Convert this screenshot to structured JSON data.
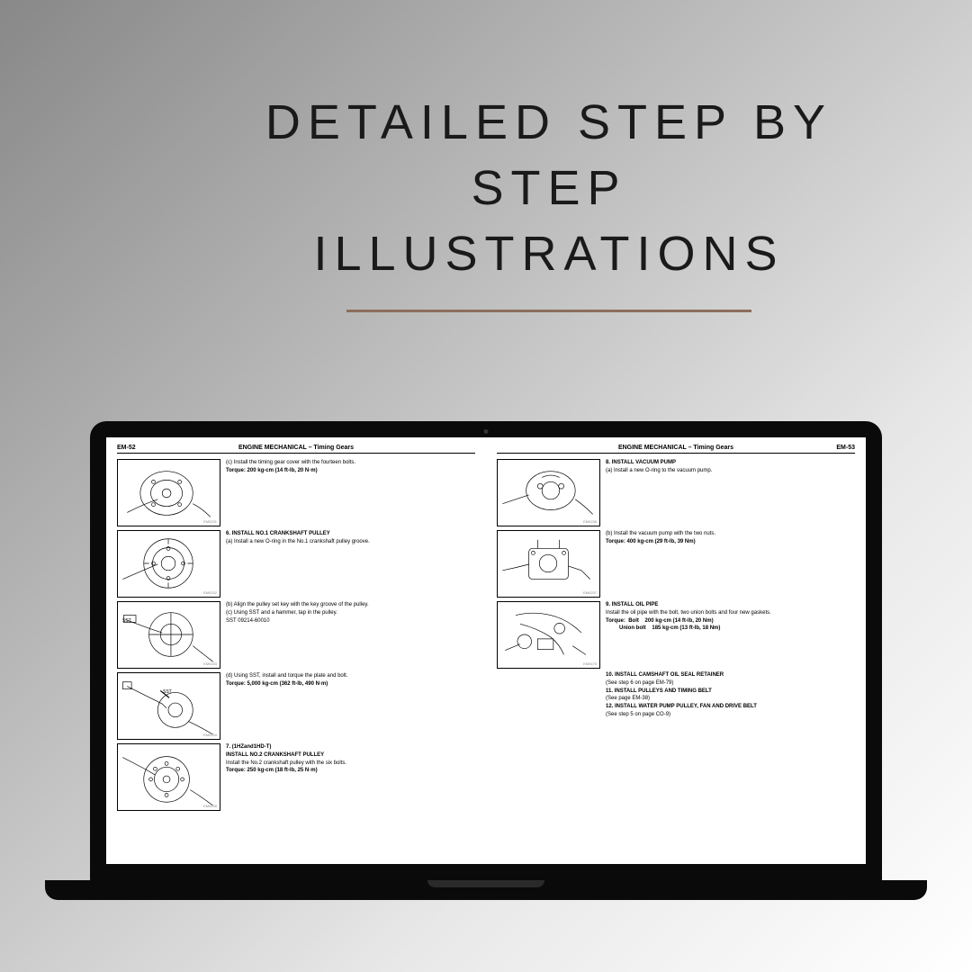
{
  "headline": {
    "line1": "DETAILED STEP BY STEP",
    "line2": "ILLUSTRATIONS"
  },
  "leftPage": {
    "pageNum": "EM-52",
    "sectionTitle": "ENGINE MECHANICAL – Timing Gears",
    "steps": [
      {
        "diagram": true,
        "diagramId": "EM0231",
        "lines": [
          "(c)  Install the timing gear cover with the fourteen bolts."
        ],
        "torque": "Torque:   200 kg-cm (14 ft-lb, 20 N·m)"
      },
      {
        "diagram": true,
        "diagramId": "EM0232",
        "num": "6.",
        "title": "INSTALL NO.1 CRANKSHAFT PULLEY",
        "lines": [
          "(a)  Install a new O-ring in the No.1 crankshaft pulley groove."
        ]
      },
      {
        "diagram": true,
        "diagramId": "EM0233",
        "sst": true,
        "lines": [
          "(b)  Align the pulley set key with the key groove of the pulley.",
          "(c)  Using SST and a hammer, tap in the pulley.",
          "SST 09214-60010"
        ]
      },
      {
        "diagram": true,
        "diagramId": "EM0234",
        "sstInner": true,
        "lines": [
          "(d)  Using SST, install and torque the plate and bolt."
        ],
        "torque": "Torque:   5,000 kg-cm (362 ft-lb, 490 N·m)"
      },
      {
        "diagram": true,
        "diagramId": "EM0235",
        "num": "7.",
        "pretitle": "(1HZand1HD-T)",
        "title": "INSTALL NO.2 CRANKSHAFT PULLEY",
        "lines": [
          "Install the No.2 crankshaft pulley with the six bolts."
        ],
        "torque": "Torque:   250 kg-cm (18 ft-lb, 25 N·m)"
      }
    ]
  },
  "rightPage": {
    "pageNum": "EM-53",
    "sectionTitle": "ENGINE MECHANICAL – Timing Gears",
    "steps": [
      {
        "diagram": true,
        "diagramId": "EM0236",
        "num": "8.",
        "title": "INSTALL VACUUM PUMP",
        "lines": [
          "(a)  Install a new O-ring to the vacuum pump."
        ]
      },
      {
        "diagram": true,
        "diagramId": "EM0237",
        "lines": [
          "(b)  Install the vacuum pump with the two nuts."
        ],
        "torque": "Torque:   400 kg-cm (29 ft-lb, 39 Nm)"
      },
      {
        "diagram": true,
        "diagramId": "EM0475",
        "num": "9.",
        "title": "INSTALL OIL PIPE",
        "lines": [
          "Install the oil pipe with the bolt, two union bolts and four new gaskets."
        ],
        "torqueMulti": [
          {
            "label": "Torque:",
            "item": "Bolt",
            "val": "200 kg-cm (14 ft-lb, 20 Nm)"
          },
          {
            "label": "",
            "item": "Union bolt",
            "val": "185 kg-cm (13 ft-lb, 18 Nm)"
          }
        ]
      },
      {
        "diagram": false,
        "num": "10.",
        "title": "INSTALL CAMSHAFT OIL SEAL RETAINER",
        "lines": [
          "(See step 6 on page EM-79)"
        ]
      },
      {
        "diagram": false,
        "num": "11.",
        "title": "INSTALL PULLEYS AND TIMING BELT",
        "lines": [
          "(See page EM-38)"
        ]
      },
      {
        "diagram": false,
        "num": "12.",
        "title": "INSTALL WATER PUMP PULLEY, FAN AND DRIVE BELT",
        "lines": [
          "(See step 5 on page CO-9)"
        ]
      }
    ]
  }
}
